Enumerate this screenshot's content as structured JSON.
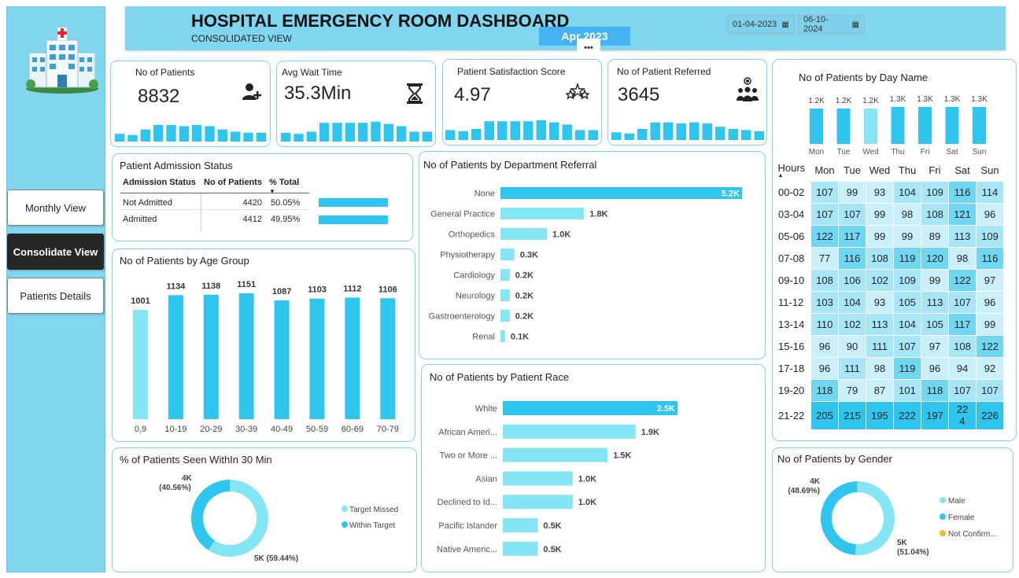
{
  "header": {
    "title": "HOSPITAL EMERGENCY ROOM DASHBOARD",
    "subtitle": "CONSOLIDATED VIEW",
    "date_from": "01-04-2023",
    "date_to": "06-10-2024",
    "month_badge": "Apr 2023",
    "more_label": "•••"
  },
  "nav": {
    "monthly": "Monthly View",
    "consolidate": "Consolidate View",
    "details": "Patients Details"
  },
  "kpis": [
    {
      "label": "No of Patients",
      "value": "8832",
      "icon": "add-user-icon",
      "glyph": "👤+",
      "spark": [
        0.35,
        0.3,
        0.55,
        0.75,
        0.75,
        0.7,
        0.75,
        0.7,
        0.55,
        0.45,
        0.4,
        0.4
      ]
    },
    {
      "label": "Avg Wait Time",
      "value": "35.3Min",
      "icon": "hourglass-icon",
      "glyph": "⌛",
      "spark": [
        0.4,
        0.35,
        0.45,
        0.85,
        0.85,
        0.85,
        0.85,
        0.9,
        0.8,
        0.7,
        0.45,
        0.45
      ]
    },
    {
      "label": "Patient Satisfaction Score",
      "value": "4.97",
      "icon": "stars-icon",
      "glyph": "☆☆",
      "spark": [
        0.45,
        0.4,
        0.5,
        0.85,
        0.85,
        0.85,
        0.85,
        0.9,
        0.8,
        0.7,
        0.45,
        0.45
      ]
    },
    {
      "label": "No of Patient Referred",
      "value": "3645",
      "icon": "group-icon",
      "glyph": "👥",
      "spark": [
        0.35,
        0.3,
        0.5,
        0.8,
        0.8,
        0.75,
        0.8,
        0.75,
        0.6,
        0.5,
        0.45,
        0.4
      ]
    }
  ],
  "admission": {
    "title": "Patient Admission Status",
    "headers": [
      "Admission Status",
      "No of Patients",
      "% Total"
    ],
    "rows": [
      {
        "status": "Not Admitted",
        "count": "4420",
        "pct": "50.05%",
        "frac": 0.5005
      },
      {
        "status": "Admitted",
        "count": "4412",
        "pct": "49.95%",
        "frac": 0.4995
      }
    ]
  },
  "age": {
    "title": "No of Patients by Age Group"
  },
  "dept": {
    "title": "No of Patients by Department Referral"
  },
  "race": {
    "title": "No of Patients by Patient Race"
  },
  "seen30": {
    "title": "% of Patients Seen WithIn 30 Min",
    "label_a_value": "4K",
    "label_a_pct": "(40.56%)",
    "label_b": "5K (59.44%)",
    "legend": [
      "Target Missed",
      "Within Target"
    ]
  },
  "gender": {
    "title": "No of Patients by Gender",
    "label_a_value": "4K",
    "label_a_pct": "(48.69%)",
    "label_b_value": "5K",
    "label_b_pct": "(51.04%)",
    "legend": [
      "Male",
      "Female",
      "Not Confirm..."
    ]
  },
  "dayname": {
    "title": "No of Patients by Day Name"
  },
  "heatmap": {
    "corner": "Hours",
    "days": [
      "Mon",
      "Tue",
      "Wed",
      "Thu",
      "Fri",
      "Sat",
      "Sun"
    ],
    "rows": [
      {
        "h": "00-02",
        "v": [
          107,
          99,
          93,
          104,
          109,
          116,
          114
        ]
      },
      {
        "h": "03-04",
        "v": [
          107,
          107,
          99,
          98,
          108,
          121,
          96
        ]
      },
      {
        "h": "05-06",
        "v": [
          122,
          117,
          99,
          99,
          89,
          113,
          109
        ]
      },
      {
        "h": "07-08",
        "v": [
          77,
          116,
          108,
          119,
          120,
          98,
          116
        ]
      },
      {
        "h": "09-10",
        "v": [
          108,
          106,
          102,
          109,
          99,
          122,
          97
        ]
      },
      {
        "h": "11-12",
        "v": [
          103,
          104,
          93,
          105,
          113,
          107,
          96
        ]
      },
      {
        "h": "13-14",
        "v": [
          110,
          102,
          113,
          104,
          105,
          117,
          99
        ]
      },
      {
        "h": "15-16",
        "v": [
          96,
          90,
          111,
          107,
          97,
          108,
          122
        ]
      },
      {
        "h": "17-18",
        "v": [
          96,
          111,
          98,
          119,
          96,
          94,
          92
        ]
      },
      {
        "h": "19-20",
        "v": [
          118,
          79,
          87,
          101,
          118,
          107,
          107
        ]
      },
      {
        "h": "21-22",
        "v": [
          205,
          215,
          195,
          222,
          197,
          224,
          226
        ]
      }
    ],
    "last_sat_display": "22\n4"
  },
  "colors": {
    "accent": "#2ec5ef",
    "light": "#84e6f4",
    "header_bg": "#80d6ef",
    "dark": "#272727",
    "notconf": "#e8c22c"
  },
  "chart_data": [
    {
      "type": "bar",
      "title": "No of Patients by Age Group",
      "categories": [
        "0,9",
        "10-19",
        "20-29",
        "30-39",
        "40-49",
        "50-59",
        "60-69",
        "70-79"
      ],
      "values": [
        1001,
        1134,
        1138,
        1151,
        1087,
        1103,
        1112,
        1106
      ]
    },
    {
      "type": "bar",
      "title": "No of Patients by Department Referral",
      "orientation": "horizontal",
      "categories": [
        "None",
        "General Practice",
        "Orthopedics",
        "Physiotherapy",
        "Cardiology",
        "Neurology",
        "Gastroenterology",
        "Renal"
      ],
      "values": [
        5.2,
        1.8,
        1.0,
        0.3,
        0.2,
        0.2,
        0.2,
        0.1
      ],
      "labels": [
        "5.2K",
        "1.8K",
        "1.0K",
        "0.3K",
        "0.2K",
        "0.2K",
        "0.2K",
        "0.1K"
      ]
    },
    {
      "type": "bar",
      "title": "No of Patients by Patient Race",
      "orientation": "horizontal",
      "categories": [
        "White",
        "African Ameri...",
        "Two or More ...",
        "Asian",
        "Declined to Id...",
        "Pacific Islander",
        "Native Americ..."
      ],
      "values": [
        2.5,
        1.9,
        1.5,
        1.0,
        1.0,
        0.5,
        0.5
      ],
      "labels": [
        "2.5K",
        "1.9K",
        "1.5K",
        "1.0K",
        "1.0K",
        "0.5K",
        "0.5K"
      ]
    },
    {
      "type": "bar",
      "title": "No of Patients by Day Name",
      "categories": [
        "Mon",
        "Tue",
        "Wed",
        "Thu",
        "Fri",
        "Sat",
        "Sun"
      ],
      "values": [
        1.2,
        1.2,
        1.2,
        1.3,
        1.3,
        1.3,
        1.3
      ],
      "labels": [
        "1.2K",
        "1.2K",
        "1.2K",
        "1.3K",
        "1.3K",
        "1.3K",
        "1.3K"
      ]
    },
    {
      "type": "pie",
      "title": "% of Patients Seen WithIn 30 Min",
      "categories": [
        "Target Missed",
        "Within Target"
      ],
      "values": [
        59.44,
        40.56
      ]
    },
    {
      "type": "pie",
      "title": "No of Patients by Gender",
      "categories": [
        "Male",
        "Female",
        "Not Confirm..."
      ],
      "values": [
        51.04,
        48.69,
        0.27
      ]
    }
  ]
}
